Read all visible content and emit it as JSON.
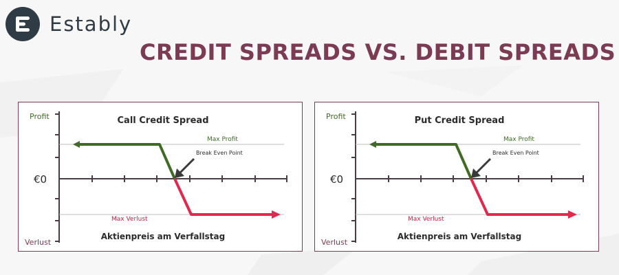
{
  "brand": {
    "name": "Estably",
    "logo_icon": "estably-e-logo-icon"
  },
  "page": {
    "title": "CREDIT SPREADS VS. DEBIT SPREADS"
  },
  "colors": {
    "title": "#7b3b52",
    "frame": "#7b3b52",
    "profit_line": "#3f6b25",
    "loss_line": "#e3284e",
    "axis": "#4a3a44",
    "profit_label": "#3f6b25",
    "loss_label": "#7b3b52",
    "max_profit_label": "#3f6b25",
    "max_loss_label": "#c8213f"
  },
  "panels": [
    {
      "title": "Call Credit Spread",
      "y_top": "Profit",
      "y_zero": "€0",
      "y_bottom": "Verlust",
      "x_label": "Aktienpreis am Verfallstag",
      "max_profit": "Max Profit",
      "max_loss": "Max Verlust",
      "break_even": "Break Even Point"
    },
    {
      "title": "Put Credit Spread",
      "y_top": "Profit",
      "y_zero": "€0",
      "y_bottom": "Verlust",
      "x_label": "Aktienpreis am Verfallstag",
      "max_profit": "Max Profit",
      "max_loss": "Max Verlust",
      "break_even": "Break Even Point"
    }
  ]
}
